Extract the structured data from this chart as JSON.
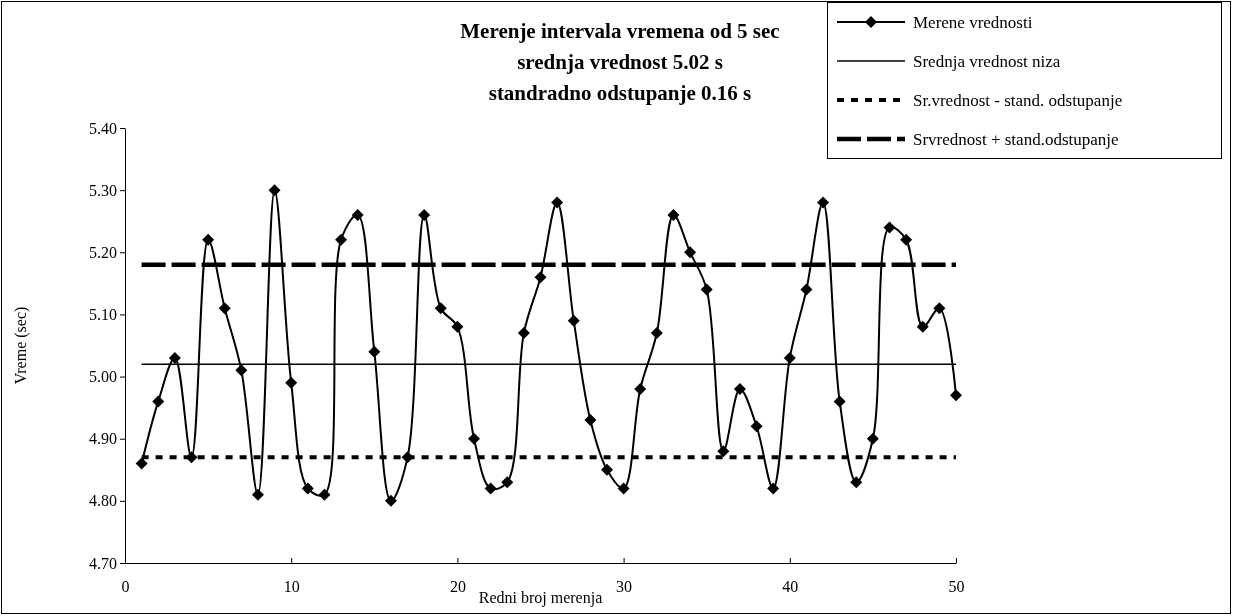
{
  "chart_data": {
    "type": "line",
    "title": "Merenje intervala vremena od 5 sec\nsrednja vrednost 5.02 s\nstandradno odstupanje 0.16 s",
    "xlabel": "Redni broj merenja",
    "ylabel": "Vreme (sec)",
    "xlim": [
      0,
      50
    ],
    "xticks": [
      0,
      10,
      20,
      30,
      40,
      50
    ],
    "ylim": [
      4.7,
      5.4
    ],
    "yticks": [
      {
        "value": 4.7,
        "label": "4.70"
      },
      {
        "value": 4.8,
        "label": "4.80"
      },
      {
        "value": 4.9,
        "label": "4.90"
      },
      {
        "value": 5.0,
        "label": "5.00"
      },
      {
        "value": 5.1,
        "label": "5.10"
      },
      {
        "value": 5.2,
        "label": "5.20"
      },
      {
        "value": 5.3,
        "label": "5.30"
      },
      {
        "value": 5.4,
        "label": "5.40"
      }
    ],
    "grid": false,
    "legend": "top right",
    "series": [
      {
        "name": "Merene vrednosti",
        "color": "#000000",
        "marker": "diamond",
        "line_style": "solid",
        "x": [
          1,
          2,
          3,
          4,
          5,
          6,
          7,
          8,
          9,
          10,
          11,
          12,
          13,
          14,
          15,
          16,
          17,
          18,
          19,
          20,
          21,
          22,
          23,
          24,
          25,
          26,
          27,
          28,
          29,
          30,
          31,
          32,
          33,
          34,
          35,
          36,
          37,
          38,
          39,
          40,
          41,
          42,
          43,
          44,
          45,
          46,
          47,
          48,
          49,
          50
        ],
        "values": [
          4.86,
          4.96,
          5.03,
          4.87,
          5.22,
          5.11,
          5.01,
          4.81,
          5.3,
          4.99,
          4.82,
          4.81,
          5.22,
          5.26,
          5.04,
          4.8,
          4.87,
          5.26,
          5.11,
          5.08,
          4.9,
          4.82,
          4.83,
          5.07,
          5.16,
          5.28,
          5.09,
          4.93,
          4.85,
          4.82,
          4.98,
          5.07,
          5.26,
          5.2,
          5.14,
          4.88,
          4.98,
          4.92,
          4.82,
          5.03,
          5.14,
          5.28,
          4.96,
          4.83,
          4.9,
          5.24,
          5.22,
          5.08,
          5.11,
          4.97
        ]
      },
      {
        "name": "Srednja vrednost niza",
        "color": "#000000",
        "marker": "none",
        "line_style": "solid",
        "x": [
          1,
          50
        ],
        "values": [
          5.02,
          5.02
        ]
      },
      {
        "name": "Sr.vrednost - stand. odstupanje",
        "color": "#000000",
        "marker": "none",
        "line_style": "dotted",
        "x": [
          1,
          50
        ],
        "values": [
          4.87,
          4.87
        ]
      },
      {
        "name": "Srvrednost + stand.odstupanje",
        "color": "#000000",
        "marker": "none",
        "line_style": "dashed",
        "x": [
          1,
          50
        ],
        "values": [
          5.18,
          5.18
        ]
      }
    ]
  }
}
